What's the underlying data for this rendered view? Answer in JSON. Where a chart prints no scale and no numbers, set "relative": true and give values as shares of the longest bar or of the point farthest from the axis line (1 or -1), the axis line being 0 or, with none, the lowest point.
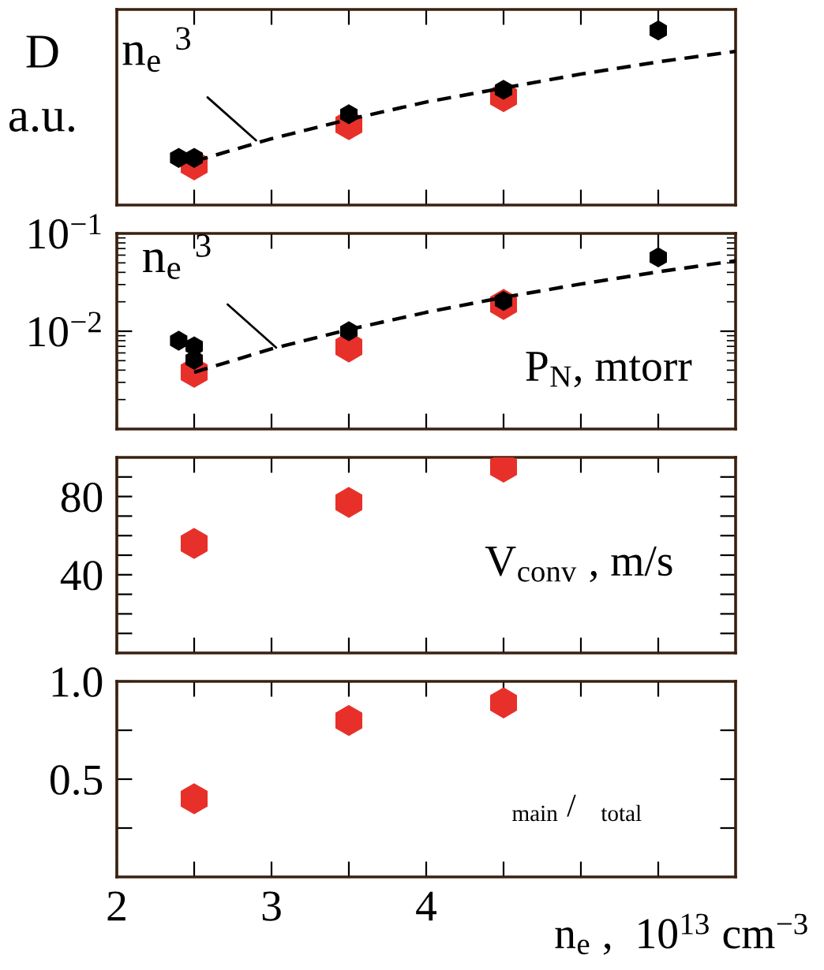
{
  "chart_data": [
    {
      "type": "scatter",
      "relative": true,
      "ylabel": "D\na.u.",
      "grid": false,
      "tick_labels": false,
      "xlim": [
        2,
        6
      ],
      "xticks": [
        {
          "value": 2,
          "label": null
        },
        {
          "value": 2.5,
          "label": null
        },
        {
          "value": 3,
          "label": null
        },
        {
          "value": 3.5,
          "label": null
        },
        {
          "value": 4,
          "label": null
        },
        {
          "value": 4.5,
          "label": null
        },
        {
          "value": 5,
          "label": null
        },
        {
          "value": 5.5,
          "label": null
        }
      ],
      "annotations": [
        {
          "text": "n$_{e}$ $^{3}$",
          "x": 2.9,
          "y": 0.37
        }
      ],
      "series": [
        {
          "color": "#e8302a",
          "x": [
            2.5,
            3.5,
            4.5
          ],
          "values": [
            0.23,
            0.46,
            0.62
          ]
        },
        {
          "color": "#000000",
          "x": [
            2.4,
            2.5,
            3.5,
            4.5,
            5.5
          ],
          "values": [
            0.27,
            0.27,
            0.52,
            0.66,
            1
          ]
        },
        {
          "type": "line",
          "line_style": "dashed",
          "marker": "none",
          "color": "#000000",
          "x": [
            2.5,
            3,
            3.5,
            4,
            4.5,
            5,
            5.5,
            6
          ],
          "values": [
            0.25,
            0.38,
            0.49,
            0.59,
            0.67,
            0.75,
            0.82,
            0.88
          ]
        }
      ]
    },
    {
      "type": "scatter",
      "log": true,
      "grid": false,
      "tick_labels": "y",
      "xlim": [
        2,
        6
      ],
      "xticks": [
        {
          "value": 2,
          "label": null
        },
        {
          "value": 2.5,
          "label": null
        },
        {
          "value": 3,
          "label": null
        },
        {
          "value": 3.5,
          "label": null
        },
        {
          "value": 4,
          "label": null
        },
        {
          "value": 4.5,
          "label": null
        },
        {
          "value": 5,
          "label": null
        },
        {
          "value": 5.5,
          "label": null
        }
      ],
      "ylim": [
        0.001,
        0.1
      ],
      "yticks": [
        {
          "value": 0.1,
          "label": "10$^{−1}$"
        },
        {
          "value": 0.01,
          "label": "10$^{−2}$"
        }
      ],
      "annotations": [
        {
          "text": "n$_{e}$ $^{3}$",
          "x": 3.03,
          "y": 0.0068
        },
        "P$_{N}$, mtorr"
      ],
      "series": [
        {
          "color": "#e8302a",
          "x": [
            2.5,
            3.5,
            4.5
          ],
          "values": [
            0.0038,
            0.0069,
            0.0188
          ]
        },
        {
          "color": "#000000",
          "x": [
            2.4,
            2.5,
            2.5,
            3.5,
            4.5,
            5.5
          ],
          "values": [
            0.008,
            0.007,
            0.0051,
            0.01,
            0.0204,
            0.057
          ]
        },
        {
          "type": "line",
          "line_style": "dashed",
          "marker": "none",
          "color": "#000000",
          "x": [
            2.5,
            3,
            3.5,
            4,
            4.5,
            5,
            5.5,
            6
          ],
          "values": [
            0.0038,
            0.0066,
            0.0104,
            0.0156,
            0.0222,
            0.0304,
            0.0405,
            0.0525
          ]
        }
      ]
    },
    {
      "type": "scatter",
      "grid": false,
      "tick_labels": "y",
      "xlim": [
        2,
        6
      ],
      "xticks": [
        {
          "value": 2,
          "label": null
        },
        {
          "value": 2.5,
          "label": null
        },
        {
          "value": 3,
          "label": null
        },
        {
          "value": 3.5,
          "label": null
        },
        {
          "value": 4,
          "label": null
        },
        {
          "value": 4.5,
          "label": null
        },
        {
          "value": 5,
          "label": null
        },
        {
          "value": 5.5,
          "label": null
        }
      ],
      "ylim": [
        0,
        100
      ],
      "yticks": [
        {
          "value": 10,
          "label": null
        },
        {
          "value": 20,
          "label": null
        },
        {
          "value": 30,
          "label": null
        },
        40,
        {
          "value": 50,
          "label": null
        },
        {
          "value": 60,
          "label": null
        },
        {
          "value": 70,
          "label": null
        },
        80,
        {
          "value": 90,
          "label": null
        }
      ],
      "annotations": [
        "V$_{conv}$ , m/s"
      ],
      "series": [
        {
          "color": "#e8302a",
          "x": [
            2.5,
            3.5,
            4.5
          ],
          "values": [
            56,
            77,
            95
          ]
        }
      ]
    },
    {
      "type": "scatter",
      "grid": false,
      "xlabel": "n$_{e}$ ,  10$^{13}$ cm$^{−3}$",
      "xlim": [
        2,
        6
      ],
      "xticks": [
        2,
        {
          "value": 2.5,
          "label": null
        },
        3,
        {
          "value": 3.5,
          "label": null
        },
        4,
        {
          "value": 4.5,
          "label": null
        },
        {
          "value": 5,
          "label": null
        },
        {
          "value": 5.5,
          "label": null
        }
      ],
      "ylim": [
        0,
        1.0
      ],
      "yticks": [
        {
          "value": 0.25,
          "label": null
        },
        0.5,
        {
          "value": 0.75,
          "label": null
        },
        {
          "value": 1.0,
          "label": "1.0"
        }
      ],
      "annotations": [
        "$_{main}$ /   $_{total}$"
      ],
      "series": [
        {
          "color": "#e8302a",
          "x": [
            2.5,
            3.5,
            4.5
          ],
          "values": [
            0.4,
            0.8,
            0.89
          ]
        }
      ]
    }
  ]
}
